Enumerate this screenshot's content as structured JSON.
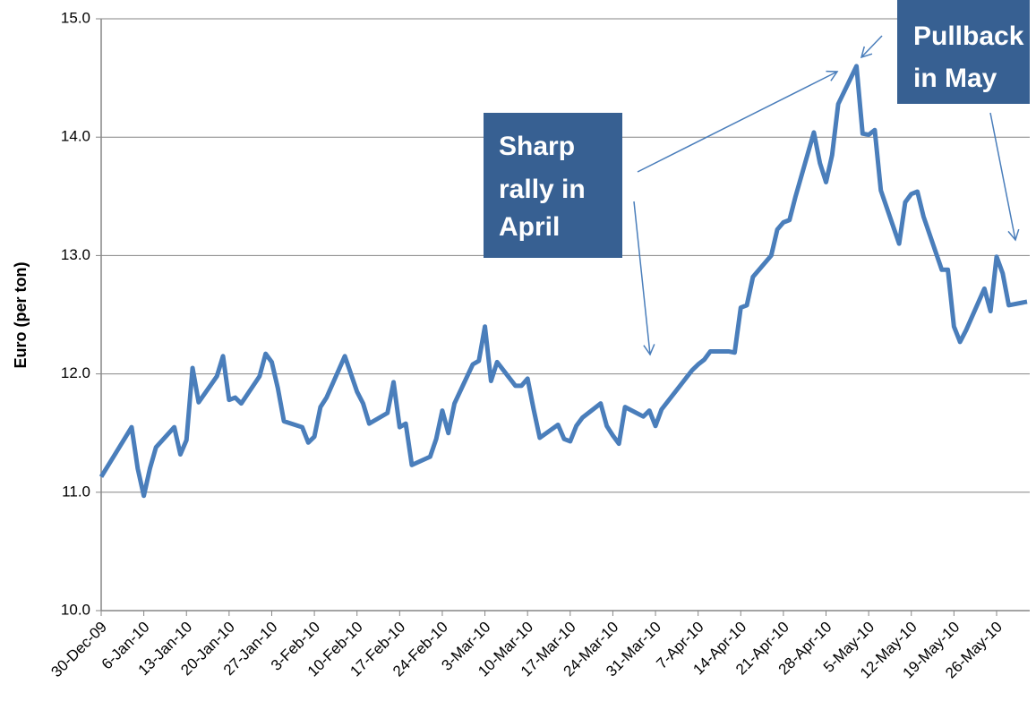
{
  "chart_data": {
    "type": "line",
    "y_label": "Euro (per ton)",
    "x": [
      "2009-12-30",
      "2010-01-04",
      "2010-01-05",
      "2010-01-06",
      "2010-01-07",
      "2010-01-08",
      "2010-01-11",
      "2010-01-12",
      "2010-01-13",
      "2010-01-14",
      "2010-01-15",
      "2010-01-18",
      "2010-01-19",
      "2010-01-20",
      "2010-01-21",
      "2010-01-22",
      "2010-01-25",
      "2010-01-26",
      "2010-01-27",
      "2010-01-28",
      "2010-01-29",
      "2010-02-01",
      "2010-02-02",
      "2010-02-03",
      "2010-02-04",
      "2010-02-05",
      "2010-02-08",
      "2010-02-09",
      "2010-02-10",
      "2010-02-11",
      "2010-02-12",
      "2010-02-15",
      "2010-02-16",
      "2010-02-17",
      "2010-02-18",
      "2010-02-19",
      "2010-02-22",
      "2010-02-23",
      "2010-02-24",
      "2010-02-25",
      "2010-02-26",
      "2010-03-01",
      "2010-03-02",
      "2010-03-03",
      "2010-03-04",
      "2010-03-05",
      "2010-03-08",
      "2010-03-09",
      "2010-03-10",
      "2010-03-11",
      "2010-03-12",
      "2010-03-15",
      "2010-03-16",
      "2010-03-17",
      "2010-03-18",
      "2010-03-19",
      "2010-03-22",
      "2010-03-23",
      "2010-03-24",
      "2010-03-25",
      "2010-03-26",
      "2010-03-29",
      "2010-03-30",
      "2010-03-31",
      "2010-04-01",
      "2010-04-06",
      "2010-04-07",
      "2010-04-08",
      "2010-04-09",
      "2010-04-12",
      "2010-04-13",
      "2010-04-14",
      "2010-04-15",
      "2010-04-16",
      "2010-04-19",
      "2010-04-20",
      "2010-04-21",
      "2010-04-22",
      "2010-04-23",
      "2010-04-26",
      "2010-04-27",
      "2010-04-28",
      "2010-04-29",
      "2010-04-30",
      "2010-05-03",
      "2010-05-04",
      "2010-05-05",
      "2010-05-06",
      "2010-05-07",
      "2010-05-10",
      "2010-05-11",
      "2010-05-12",
      "2010-05-13",
      "2010-05-14",
      "2010-05-17",
      "2010-05-18",
      "2010-05-19",
      "2010-05-20",
      "2010-05-21",
      "2010-05-24",
      "2010-05-25",
      "2010-05-26",
      "2010-05-27",
      "2010-05-28",
      "2010-05-31"
    ],
    "series": [
      {
        "color": "#4a7ebb",
        "values": [
          11.13,
          11.55,
          11.2,
          10.97,
          11.2,
          11.38,
          11.55,
          11.32,
          11.44,
          12.05,
          11.76,
          11.98,
          12.15,
          11.78,
          11.8,
          11.75,
          11.98,
          12.17,
          12.1,
          11.88,
          11.6,
          11.55,
          11.42,
          11.47,
          11.72,
          11.8,
          12.15,
          12.0,
          11.85,
          11.75,
          11.58,
          11.67,
          11.93,
          11.55,
          11.58,
          11.23,
          11.3,
          11.45,
          11.69,
          11.5,
          11.75,
          12.08,
          12.11,
          12.4,
          11.94,
          12.1,
          11.9,
          11.9,
          11.96,
          11.7,
          11.46,
          11.57,
          11.45,
          11.43,
          11.56,
          11.63,
          11.75,
          11.56,
          11.48,
          11.41,
          11.72,
          11.64,
          11.69,
          11.56,
          11.7,
          12.03,
          12.08,
          12.12,
          12.19,
          12.19,
          12.18,
          12.56,
          12.58,
          12.82,
          13.0,
          13.22,
          13.28,
          13.3,
          13.5,
          14.04,
          13.78,
          13.62,
          13.85,
          14.28,
          14.6,
          14.03,
          14.02,
          14.06,
          13.55,
          13.1,
          13.45,
          13.52,
          13.54,
          13.33,
          12.88,
          12.88,
          12.4,
          12.27,
          12.37,
          12.72,
          12.53,
          12.99,
          12.85,
          12.58,
          12.61
        ]
      }
    ],
    "xlim": [
      "2009-12-30",
      "2010-05-31"
    ],
    "xticks": [
      {
        "value": "2009-12-30",
        "label": "30-Dec-09"
      },
      {
        "value": "2010-01-06",
        "label": "6-Jan-10"
      },
      {
        "value": "2010-01-13",
        "label": "13-Jan-10"
      },
      {
        "value": "2010-01-20",
        "label": "20-Jan-10"
      },
      {
        "value": "2010-01-27",
        "label": "27-Jan-10"
      },
      {
        "value": "2010-02-03",
        "label": "3-Feb-10"
      },
      {
        "value": "2010-02-10",
        "label": "10-Feb-10"
      },
      {
        "value": "2010-02-17",
        "label": "17-Feb-10"
      },
      {
        "value": "2010-02-24",
        "label": "24-Feb-10"
      },
      {
        "value": "2010-03-03",
        "label": "3-Mar-10"
      },
      {
        "value": "2010-03-10",
        "label": "10-Mar-10"
      },
      {
        "value": "2010-03-17",
        "label": "17-Mar-10"
      },
      {
        "value": "2010-03-24",
        "label": "24-Mar-10"
      },
      {
        "value": "2010-03-31",
        "label": "31-Mar-10"
      },
      {
        "value": "2010-04-07",
        "label": "7-Apr-10"
      },
      {
        "value": "2010-04-14",
        "label": "14-Apr-10"
      },
      {
        "value": "2010-04-21",
        "label": "21-Apr-10"
      },
      {
        "value": "2010-04-28",
        "label": "28-Apr-10"
      },
      {
        "value": "2010-05-05",
        "label": "5-May-10"
      },
      {
        "value": "2010-05-12",
        "label": "12-May-10"
      },
      {
        "value": "2010-05-19",
        "label": "19-May-10"
      },
      {
        "value": "2010-05-26",
        "label": "26-May-10"
      }
    ],
    "ylim": [
      10,
      15
    ],
    "yticks": [
      {
        "value": 10,
        "label": "10.0"
      },
      {
        "value": 11,
        "label": "11.0"
      },
      {
        "value": 12,
        "label": "12.0"
      },
      {
        "value": 13,
        "label": "13.0"
      },
      {
        "value": 14,
        "label": "14.0"
      },
      {
        "value": 15,
        "label": "15.0"
      }
    ],
    "grid": true,
    "annotations": [
      [
        "Sharp",
        "rally in",
        "April"
      ],
      [
        "Pullback",
        "in May"
      ]
    ]
  }
}
